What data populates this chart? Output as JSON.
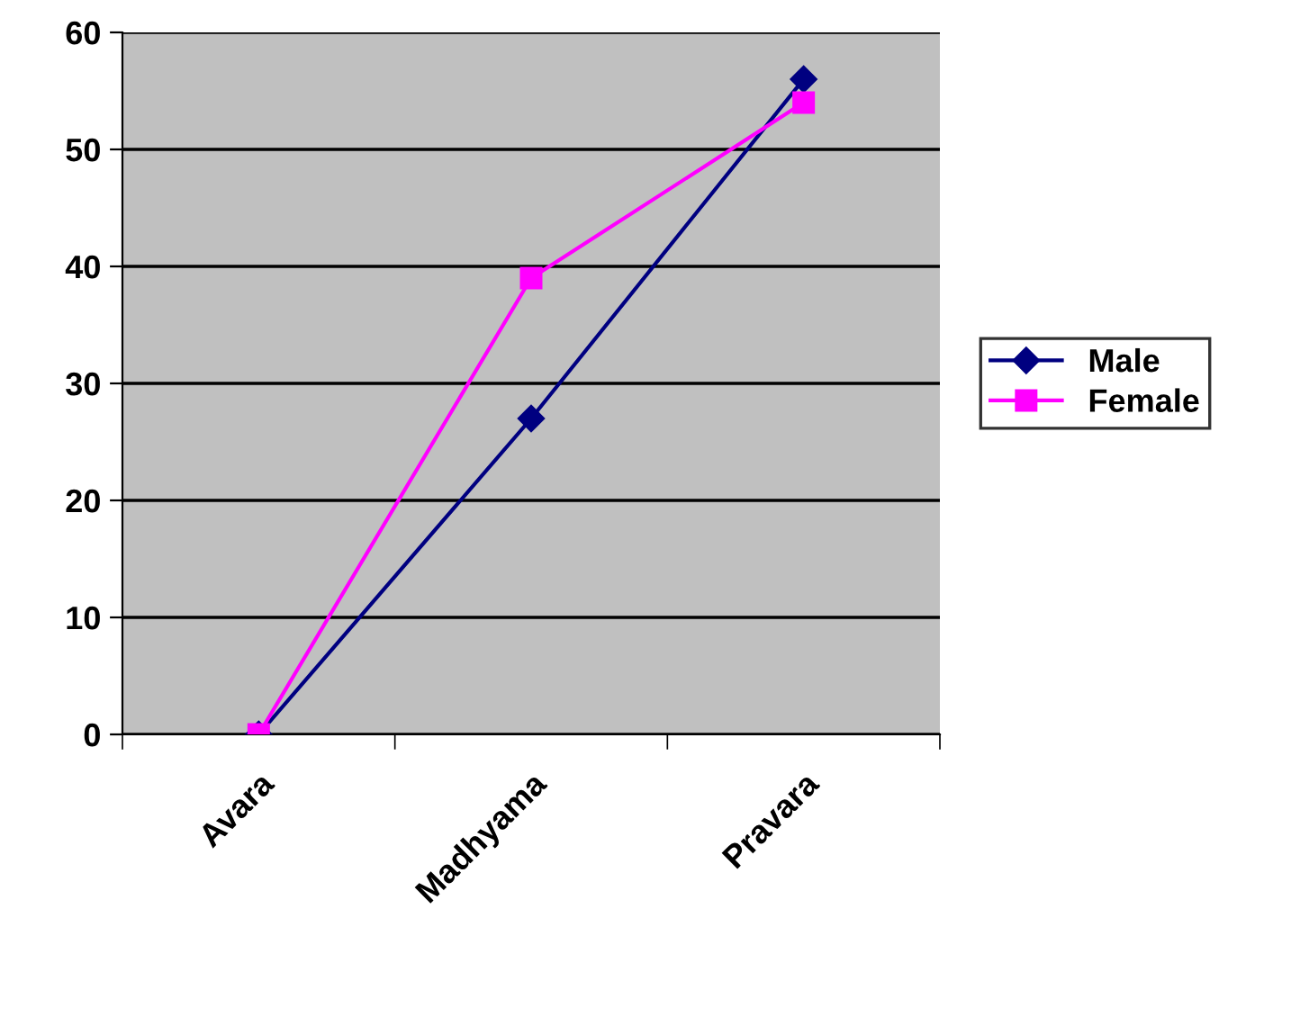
{
  "chart_data": {
    "type": "line",
    "categories": [
      "Avara",
      "Madhyama",
      "Pravara"
    ],
    "series": [
      {
        "name": "Male",
        "color": "#000080",
        "values": [
          0,
          27,
          56
        ],
        "marker": "diamond"
      },
      {
        "name": "Female",
        "color": "#ff00ff",
        "values": [
          0,
          39,
          54
        ],
        "marker": "square"
      }
    ],
    "ylim": [
      0,
      60
    ],
    "yticks": [
      0,
      10,
      20,
      30,
      40,
      50,
      60
    ],
    "grid": "y",
    "legend": "right",
    "line_style": "solid"
  }
}
